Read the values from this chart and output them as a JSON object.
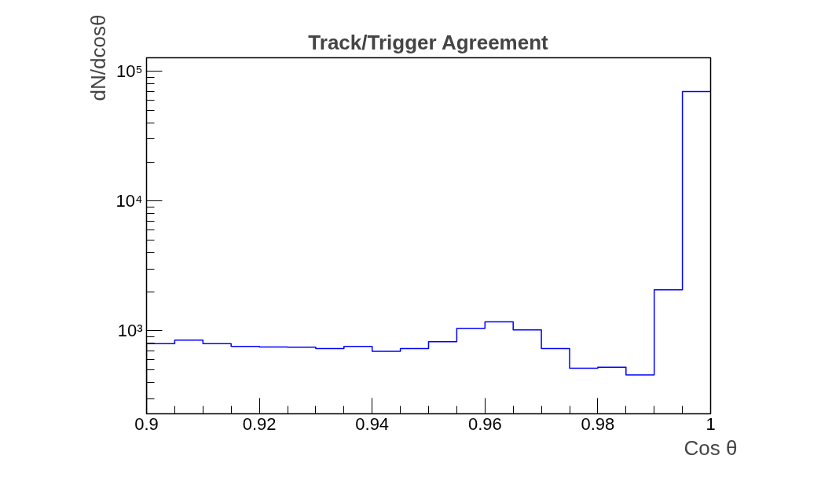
{
  "chart_data": {
    "type": "histogram",
    "title": "Track/Trigger Agreement",
    "xlabel": "Cos θ",
    "ylabel": "dN/dcosθ",
    "bins": [
      0.9,
      0.905,
      0.91,
      0.915,
      0.92,
      0.925,
      0.93,
      0.935,
      0.94,
      0.945,
      0.95,
      0.955,
      0.96,
      0.965,
      0.97,
      0.975,
      0.98,
      0.985,
      0.99,
      0.995,
      1.0
    ],
    "values": [
      794,
      846,
      794,
      757,
      750,
      748,
      730,
      757,
      693,
      730,
      823,
      1042,
      1172,
      1014,
      730,
      514,
      523,
      456,
      2066,
      69600
    ],
    "color": "#0000ff",
    "log": true,
    "grid": false,
    "xlim": [
      0.9,
      1.0
    ],
    "xticks": [
      0.9,
      0.92,
      0.94,
      0.96,
      0.98,
      1
    ],
    "ylim": [
      229,
      127000
    ],
    "yticks": [
      {
        "value": 1000,
        "label": "10³"
      },
      {
        "value": 10000,
        "label": "10⁴"
      },
      {
        "value": 100000,
        "label": "10⁵"
      }
    ]
  }
}
